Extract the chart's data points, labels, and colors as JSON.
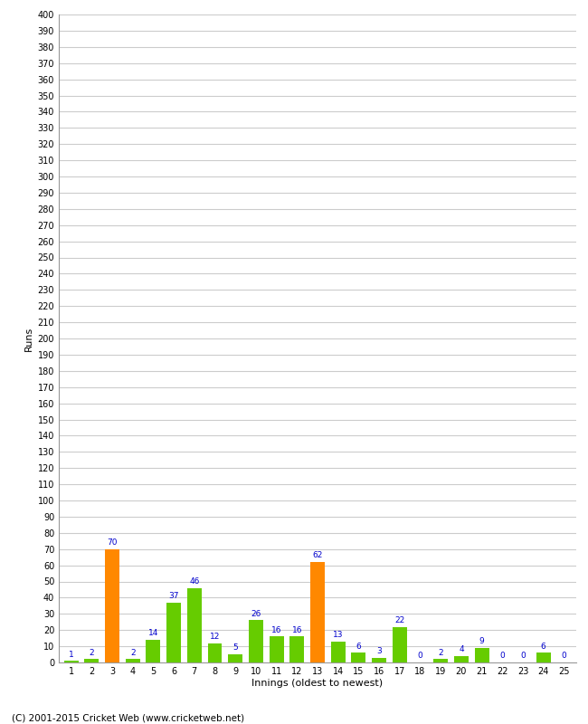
{
  "xlabel": "Innings (oldest to newest)",
  "ylabel": "Runs",
  "values": [
    1,
    2,
    70,
    2,
    14,
    37,
    46,
    12,
    5,
    26,
    16,
    16,
    62,
    13,
    6,
    3,
    22,
    0,
    2,
    4,
    9,
    0,
    0,
    6,
    0
  ],
  "innings": [
    1,
    2,
    3,
    4,
    5,
    6,
    7,
    8,
    9,
    10,
    11,
    12,
    13,
    14,
    15,
    16,
    17,
    18,
    19,
    20,
    21,
    22,
    23,
    24,
    25
  ],
  "highlight_innings": [
    3,
    13
  ],
  "bar_color_normal": "#66cc00",
  "bar_color_highlight": "#ff8800",
  "label_color": "#0000cc",
  "background_color": "#ffffff",
  "grid_color": "#cccccc",
  "ylim": [
    0,
    400
  ],
  "footer": "(C) 2001-2015 Cricket Web (www.cricketweb.net)"
}
